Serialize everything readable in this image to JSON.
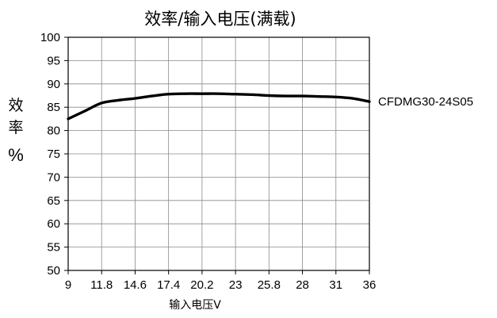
{
  "chart_data": {
    "type": "line",
    "title": "效率/输入电压(满载)",
    "xlabel": "输入电压V",
    "ylabel": [
      "效",
      "率",
      "%"
    ],
    "x_tick_labels": [
      "9",
      "11.8",
      "14.6",
      "17.4",
      "20.2",
      "23",
      "25.8",
      "28",
      "31",
      "36"
    ],
    "y_ticks": [
      50,
      55,
      60,
      65,
      70,
      75,
      80,
      85,
      90,
      95,
      100
    ],
    "ylim": [
      50,
      100
    ],
    "grid": true,
    "series": [
      {
        "name": "CFDMG30-24S05",
        "x_index": [
          0,
          0.5,
          1,
          1.5,
          2,
          2.5,
          3,
          3.5,
          4,
          4.5,
          5,
          5.5,
          6,
          6.5,
          7,
          7.5,
          8,
          8.5,
          9
        ],
        "values": [
          82.5,
          84.2,
          85.9,
          86.5,
          86.9,
          87.4,
          87.8,
          87.9,
          87.9,
          87.9,
          87.8,
          87.7,
          87.5,
          87.4,
          87.4,
          87.3,
          87.2,
          86.9,
          86.2
        ]
      }
    ]
  }
}
